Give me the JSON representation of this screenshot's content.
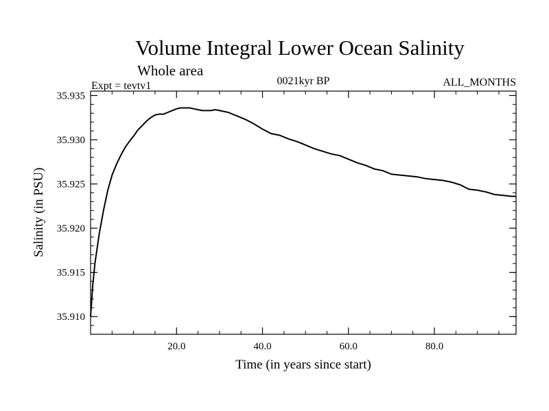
{
  "header": {
    "title": "Volume Integral Lower Ocean Salinity",
    "subtitle": "Whole area",
    "expt": "Expt = tevtv1",
    "period": "0021kyr BP",
    "months": "ALL_MONTHS"
  },
  "chart_data": {
    "type": "line",
    "title": "Volume Integral Lower Ocean Salinity",
    "subtitle": "Whole area",
    "xlabel": "Time (in years since start)",
    "ylabel": "Salinity (in PSU)",
    "xlim": [
      0,
      99
    ],
    "ylim": [
      35.908,
      35.9355
    ],
    "grid": false,
    "x_ticks": [
      {
        "value": 20,
        "label": "20.0"
      },
      {
        "value": 40,
        "label": "40.0"
      },
      {
        "value": 60,
        "label": "60.0"
      },
      {
        "value": 80,
        "label": "80.0"
      }
    ],
    "y_ticks": [
      {
        "value": 35.91,
        "label": "35.910"
      },
      {
        "value": 35.915,
        "label": "35.915"
      },
      {
        "value": 35.92,
        "label": "35.920"
      },
      {
        "value": 35.925,
        "label": "35.925"
      },
      {
        "value": 35.93,
        "label": "35.930"
      },
      {
        "value": 35.935,
        "label": "35.935"
      }
    ],
    "series": [
      {
        "name": "salinity",
        "x": [
          0,
          0.5,
          1,
          2,
          3,
          4,
          5,
          6,
          7,
          8,
          9,
          10,
          11,
          12,
          13,
          14,
          15,
          16,
          17,
          18,
          19,
          20,
          21,
          22,
          23,
          24,
          25,
          26,
          27,
          28,
          29,
          30,
          32,
          34,
          36,
          38,
          40,
          42,
          44,
          46,
          48,
          50,
          52,
          54,
          56,
          58,
          60,
          62,
          64,
          66,
          68,
          70,
          72,
          74,
          76,
          78,
          80,
          82,
          84,
          86,
          88,
          90,
          92,
          94,
          96,
          98,
          99
        ],
        "y": [
          35.91,
          35.9135,
          35.916,
          35.9193,
          35.922,
          35.9243,
          35.926,
          35.9272,
          35.9282,
          35.9291,
          35.9298,
          35.9304,
          35.9311,
          35.9316,
          35.9321,
          35.9325,
          35.9328,
          35.9329,
          35.9329,
          35.9331,
          35.9333,
          35.9335,
          35.9336,
          35.9336,
          35.9336,
          35.9335,
          35.9334,
          35.9333,
          35.9333,
          35.9333,
          35.9334,
          35.9333,
          35.9331,
          35.9327,
          35.9323,
          35.9318,
          35.9312,
          35.9307,
          35.9305,
          35.9301,
          35.9298,
          35.9294,
          35.929,
          35.9287,
          35.9284,
          35.9282,
          35.9278,
          35.9274,
          35.9271,
          35.9267,
          35.9265,
          35.9261,
          35.926,
          35.9259,
          35.9258,
          35.9256,
          35.9255,
          35.9254,
          35.9252,
          35.9249,
          35.9244,
          35.9243,
          35.9241,
          35.9238,
          35.9237,
          35.9236,
          35.9236
        ]
      }
    ]
  }
}
